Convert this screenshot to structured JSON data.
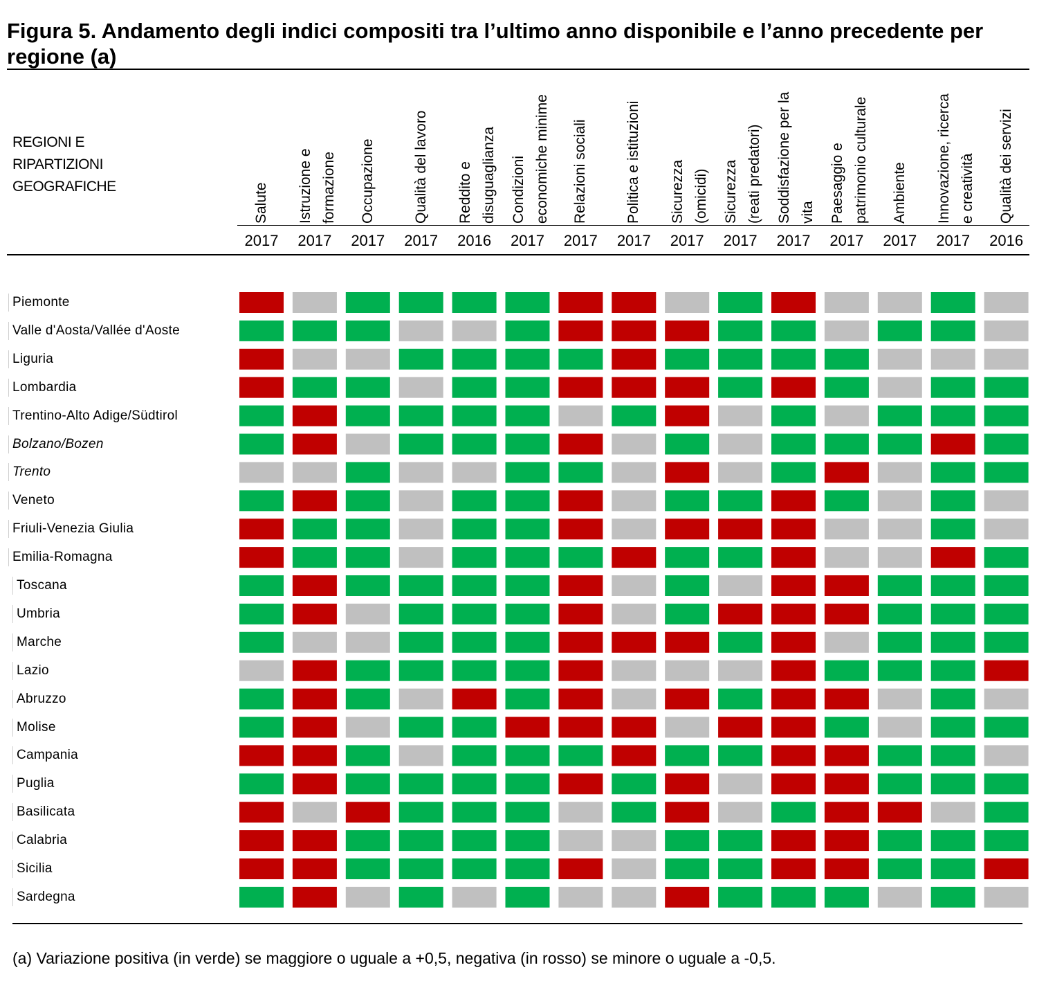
{
  "title": "Figura 5. Andamento degli indici compositi tra l’ultimo anno disponibile e l’anno precedente per regione (a)",
  "header_label": [
    "REGIONI E",
    "RIPARTIZIONI",
    "GEOGRAFICHE"
  ],
  "footnote": "(a) Variazione positiva (in verde) se maggiore o uguale a +0,5, negativa (in rosso) se minore o uguale a -0,5.",
  "colors": {
    "positive": "#00b050",
    "negative": "#c00000",
    "neutral": "#c0c0c0"
  },
  "chart_data": {
    "type": "heatmap",
    "encoding": {
      "1": "positive",
      "-1": "negative",
      "0": "neutral"
    },
    "columns": [
      {
        "lines": [
          "Salute"
        ],
        "year": "2017"
      },
      {
        "lines": [
          "Istruzione e",
          "formazione"
        ],
        "year": "2017"
      },
      {
        "lines": [
          "Occupazione"
        ],
        "year": "2017"
      },
      {
        "lines": [
          "Qualità del lavoro"
        ],
        "year": "2017"
      },
      {
        "lines": [
          "Reddito e",
          "disuguaglianza"
        ],
        "year": "2016"
      },
      {
        "lines": [
          "Condizioni",
          "economiche minime"
        ],
        "year": "2017"
      },
      {
        "lines": [
          "Relazioni sociali"
        ],
        "year": "2017"
      },
      {
        "lines": [
          "Politica e istituzioni"
        ],
        "year": "2017"
      },
      {
        "lines": [
          "Sicurezza",
          "(omicidi)"
        ],
        "year": "2017"
      },
      {
        "lines": [
          "Sicurezza",
          "(reati predatori)"
        ],
        "year": "2017"
      },
      {
        "lines": [
          "Soddisfazione per la",
          "vita"
        ],
        "year": "2017"
      },
      {
        "lines": [
          "Paesaggio e",
          "patrimonio culturale"
        ],
        "year": "2017"
      },
      {
        "lines": [
          "Ambiente"
        ],
        "year": "2017"
      },
      {
        "lines": [
          "Innovazione, ricerca",
          "e creatività"
        ],
        "year": "2017"
      },
      {
        "lines": [
          "Qualità dei servizi"
        ],
        "year": "2016"
      }
    ],
    "rows": [
      {
        "name": "Piemonte",
        "italic": false,
        "values": [
          -1,
          0,
          1,
          1,
          1,
          1,
          -1,
          -1,
          0,
          1,
          -1,
          0,
          0,
          1,
          0
        ]
      },
      {
        "name": "Valle d'Aosta/Vallée d'Aoste",
        "italic": false,
        "values": [
          1,
          1,
          1,
          0,
          0,
          1,
          -1,
          -1,
          -1,
          1,
          1,
          0,
          1,
          1,
          0
        ]
      },
      {
        "name": "Liguria",
        "italic": false,
        "values": [
          -1,
          0,
          0,
          1,
          1,
          1,
          1,
          -1,
          1,
          1,
          1,
          1,
          0,
          0,
          0
        ]
      },
      {
        "name": "Lombardia",
        "italic": false,
        "values": [
          -1,
          1,
          1,
          0,
          1,
          1,
          -1,
          -1,
          -1,
          1,
          -1,
          1,
          0,
          1,
          1
        ]
      },
      {
        "name": "Trentino-Alto Adige/Südtirol",
        "italic": false,
        "values": [
          1,
          -1,
          1,
          1,
          1,
          1,
          0,
          1,
          -1,
          0,
          1,
          0,
          1,
          1,
          1
        ]
      },
      {
        "name": "Bolzano/Bozen",
        "italic": true,
        "values": [
          1,
          -1,
          0,
          1,
          1,
          1,
          -1,
          0,
          1,
          0,
          1,
          1,
          1,
          -1,
          1
        ]
      },
      {
        "name": "Trento",
        "italic": true,
        "values": [
          0,
          0,
          1,
          0,
          0,
          1,
          1,
          0,
          -1,
          0,
          1,
          -1,
          0,
          1,
          1
        ]
      },
      {
        "name": "Veneto",
        "italic": false,
        "values": [
          1,
          -1,
          1,
          0,
          1,
          1,
          -1,
          0,
          1,
          1,
          -1,
          1,
          0,
          1,
          0
        ]
      },
      {
        "name": "Friuli-Venezia Giulia",
        "italic": false,
        "values": [
          -1,
          1,
          1,
          0,
          1,
          1,
          -1,
          0,
          -1,
          -1,
          -1,
          0,
          0,
          1,
          0
        ]
      },
      {
        "name": "Emilia-Romagna",
        "italic": false,
        "values": [
          -1,
          1,
          1,
          0,
          1,
          1,
          1,
          -1,
          1,
          1,
          -1,
          0,
          0,
          -1,
          1
        ]
      },
      {
        "name": "Toscana",
        "italic": false,
        "values": [
          1,
          -1,
          1,
          1,
          1,
          1,
          -1,
          0,
          1,
          0,
          -1,
          -1,
          1,
          1,
          1
        ]
      },
      {
        "name": "Umbria",
        "italic": false,
        "values": [
          1,
          -1,
          0,
          1,
          1,
          1,
          -1,
          0,
          1,
          -1,
          -1,
          -1,
          1,
          1,
          1
        ]
      },
      {
        "name": "Marche",
        "italic": false,
        "values": [
          1,
          0,
          0,
          1,
          1,
          1,
          -1,
          -1,
          -1,
          1,
          -1,
          0,
          1,
          1,
          1
        ]
      },
      {
        "name": "Lazio",
        "italic": false,
        "values": [
          0,
          -1,
          1,
          1,
          1,
          1,
          -1,
          0,
          0,
          0,
          -1,
          1,
          1,
          1,
          -1
        ]
      },
      {
        "name": "Abruzzo",
        "italic": false,
        "values": [
          1,
          -1,
          1,
          0,
          -1,
          1,
          -1,
          0,
          -1,
          1,
          -1,
          -1,
          0,
          1,
          0
        ]
      },
      {
        "name": "Molise",
        "italic": false,
        "values": [
          1,
          -1,
          0,
          1,
          1,
          -1,
          -1,
          -1,
          0,
          -1,
          -1,
          1,
          0,
          1,
          1
        ]
      },
      {
        "name": "Campania",
        "italic": false,
        "values": [
          -1,
          -1,
          1,
          0,
          1,
          1,
          1,
          -1,
          1,
          1,
          -1,
          -1,
          1,
          1,
          0
        ]
      },
      {
        "name": "Puglia",
        "italic": false,
        "values": [
          1,
          -1,
          1,
          1,
          1,
          1,
          -1,
          1,
          -1,
          0,
          -1,
          -1,
          1,
          1,
          1
        ]
      },
      {
        "name": "Basilicata",
        "italic": false,
        "values": [
          -1,
          0,
          -1,
          1,
          1,
          1,
          0,
          1,
          -1,
          0,
          1,
          -1,
          -1,
          0,
          1
        ]
      },
      {
        "name": "Calabria",
        "italic": false,
        "values": [
          -1,
          -1,
          1,
          1,
          1,
          1,
          0,
          0,
          1,
          1,
          -1,
          -1,
          1,
          1,
          1
        ]
      },
      {
        "name": "Sicilia",
        "italic": false,
        "values": [
          -1,
          -1,
          1,
          1,
          1,
          1,
          -1,
          0,
          1,
          1,
          -1,
          -1,
          1,
          1,
          -1
        ]
      },
      {
        "name": "Sardegna",
        "italic": false,
        "values": [
          1,
          -1,
          0,
          1,
          0,
          1,
          0,
          0,
          -1,
          1,
          1,
          1,
          0,
          1,
          0
        ]
      }
    ]
  }
}
